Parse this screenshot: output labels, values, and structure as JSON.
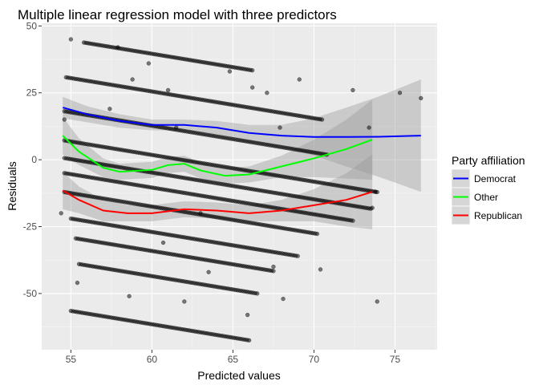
{
  "chart_data": {
    "type": "scatter",
    "title": "Multiple linear regression model with three predictors",
    "xlabel": "Predicted values",
    "ylabel": "Residuals",
    "xlim": [
      53.2,
      77.6
    ],
    "ylim": [
      -71,
      51
    ],
    "xticks": [
      55,
      60,
      65,
      70,
      75
    ],
    "yticks": [
      -50,
      -25,
      0,
      25,
      50
    ],
    "grid": true,
    "legend": {
      "title": "Party affiliation",
      "position": "right"
    },
    "point_color": "#000000",
    "band_color": "#999999",
    "bands": [
      {
        "intercept": 99.6,
        "slope": -1.0,
        "x": [
          55.8,
          66.2
        ]
      },
      {
        "intercept": 85.5,
        "slope": -1.0,
        "x": [
          54.7,
          70.5
        ]
      },
      {
        "intercept": 72.7,
        "slope": -1.0,
        "x": [
          54.6,
          70.8
        ]
      },
      {
        "intercept": 61.8,
        "slope": -1.0,
        "x": [
          54.6,
          73.9
        ]
      },
      {
        "intercept": 55.2,
        "slope": -1.0,
        "x": [
          54.6,
          73.5
        ]
      },
      {
        "intercept": 49.6,
        "slope": -1.0,
        "x": [
          54.6,
          72.4
        ]
      },
      {
        "intercept": 42.5,
        "slope": -1.0,
        "x": [
          54.6,
          70.2
        ]
      },
      {
        "intercept": 33.0,
        "slope": -1.0,
        "x": [
          55.0,
          69.0
        ]
      },
      {
        "intercept": 25.9,
        "slope": -1.0,
        "x": [
          55.3,
          67.5
        ]
      },
      {
        "intercept": 16.5,
        "slope": -1.0,
        "x": [
          55.5,
          66.5
        ]
      },
      {
        "intercept": -1.5,
        "slope": -1.0,
        "x": [
          55.0,
          66.0
        ]
      }
    ],
    "extra_points": [
      [
        55.0,
        45
      ],
      [
        54.6,
        15
      ],
      [
        54.4,
        -20
      ],
      [
        55.4,
        -46
      ],
      [
        57.4,
        19
      ],
      [
        57.9,
        42
      ],
      [
        58.8,
        30
      ],
      [
        59.8,
        36
      ],
      [
        61.0,
        26
      ],
      [
        61.5,
        12
      ],
      [
        63.0,
        -20
      ],
      [
        63.5,
        -42
      ],
      [
        64.8,
        33
      ],
      [
        65.9,
        -58
      ],
      [
        66.2,
        27
      ],
      [
        67.1,
        25
      ],
      [
        67.9,
        12
      ],
      [
        67.5,
        -40
      ],
      [
        68.1,
        -52
      ],
      [
        69.1,
        30
      ],
      [
        70.4,
        -41
      ],
      [
        72.4,
        26
      ],
      [
        73.6,
        -18
      ],
      [
        73.9,
        -53
      ],
      [
        73.4,
        12
      ],
      [
        73.8,
        -12
      ],
      [
        75.3,
        25
      ],
      [
        76.6,
        23
      ],
      [
        60.7,
        -31
      ],
      [
        58.6,
        -51
      ],
      [
        62.0,
        -53
      ]
    ],
    "series": [
      {
        "name": "Democrat",
        "color": "#0000ff",
        "x": [
          54.5,
          56.0,
          58.0,
          60.0,
          62.0,
          64.0,
          66.0,
          68.0,
          70.0,
          72.0,
          74.0,
          76.6
        ],
        "y": [
          19.5,
          17,
          14.5,
          13,
          13,
          12,
          10,
          9,
          8.5,
          8.5,
          8.6,
          9
        ],
        "band_halfwidth": [
          4,
          3,
          2.5,
          2,
          2,
          2.5,
          3,
          4,
          7,
          11,
          15,
          21
        ]
      },
      {
        "name": "Other",
        "color": "#00ff00",
        "x": [
          54.5,
          55.5,
          57.0,
          58.0,
          60.0,
          61.0,
          62.0,
          63.0,
          64.5,
          66.0,
          68.0,
          70.0,
          72.0,
          73.6
        ],
        "y": [
          9,
          3,
          -3,
          -4.5,
          -3.8,
          -2,
          -1.5,
          -4,
          -6,
          -5.5,
          -2.5,
          0.5,
          4,
          7.5
        ],
        "band_halfwidth": [
          7,
          5,
          3.5,
          3,
          3,
          3,
          3,
          3,
          3,
          3,
          4,
          7,
          11,
          15
        ]
      },
      {
        "name": "Republican",
        "color": "#ff0000",
        "x": [
          54.5,
          55.5,
          57.0,
          58.5,
          60.0,
          62.0,
          64.0,
          66.0,
          68.0,
          70.0,
          72.0,
          73.6
        ],
        "y": [
          -11.5,
          -15,
          -19,
          -20,
          -20,
          -18.5,
          -19,
          -20,
          -19,
          -17,
          -15,
          -12
        ],
        "band_halfwidth": [
          7,
          5,
          4,
          3,
          3,
          3,
          3,
          3,
          4,
          6,
          10,
          14
        ]
      }
    ]
  }
}
